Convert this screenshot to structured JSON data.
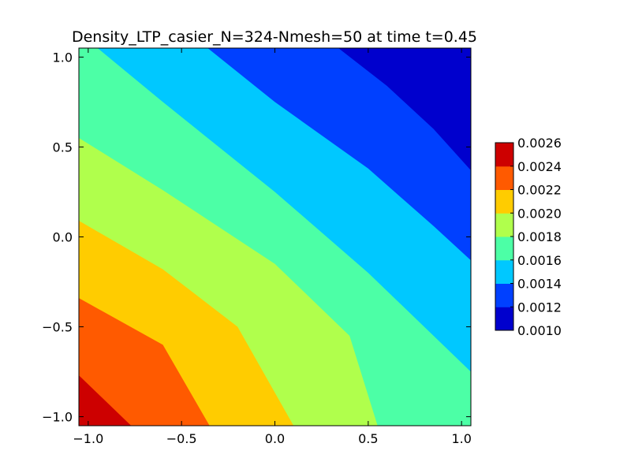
{
  "chart_data": {
    "type": "contourf",
    "title": "Density_LTP_casier_N=324-Nmesh=50 at time t=0.45",
    "xlabel": "",
    "ylabel": "",
    "xlim": [
      -1.05,
      1.05
    ],
    "ylim": [
      -1.05,
      1.05
    ],
    "x_ticks": [
      -1.0,
      -0.5,
      0.0,
      0.5,
      1.0
    ],
    "x_tick_labels": [
      "−1.0",
      "−0.5",
      "0.0",
      "0.5",
      "1.0"
    ],
    "y_ticks": [
      -1.0,
      -0.5,
      0.0,
      0.5,
      1.0
    ],
    "y_tick_labels": [
      "−1.0",
      "−0.5",
      "0.0",
      "0.5",
      "1.0"
    ],
    "grid": false,
    "colorbar": {
      "levels": [
        0.001,
        0.0012,
        0.0014,
        0.0016,
        0.0018,
        0.002,
        0.0022,
        0.0024,
        0.0026
      ],
      "labels": [
        "0.0010",
        "0.0012",
        "0.0014",
        "0.0016",
        "0.0018",
        "0.0020",
        "0.0022",
        "0.0024",
        "0.0026"
      ],
      "colors": [
        "#0000cd",
        "#0040ff",
        "#00c8ff",
        "#4cffa6",
        "#b0ff4c",
        "#ffcc00",
        "#ff5a00",
        "#cd0000"
      ],
      "position": "right"
    },
    "contour_boundaries": [
      {
        "level": 0.0012,
        "points": [
          [
            0.34,
            1.05
          ],
          [
            0.6,
            0.84
          ],
          [
            0.85,
            0.6
          ],
          [
            1.05,
            0.37
          ]
        ]
      },
      {
        "level": 0.0014,
        "points": [
          [
            -0.36,
            1.05
          ],
          [
            0.0,
            0.75
          ],
          [
            0.5,
            0.38
          ],
          [
            0.85,
            0.06
          ],
          [
            1.05,
            -0.13
          ]
        ]
      },
      {
        "level": 0.0016,
        "points": [
          [
            -0.95,
            1.05
          ],
          [
            -0.6,
            0.75
          ],
          [
            0.0,
            0.25
          ],
          [
            0.5,
            -0.2
          ],
          [
            0.85,
            -0.55
          ],
          [
            1.05,
            -0.75
          ]
        ]
      },
      {
        "level": 0.0018,
        "points": [
          [
            -1.05,
            0.55
          ],
          [
            -0.6,
            0.26
          ],
          [
            0.0,
            -0.15
          ],
          [
            0.4,
            -0.55
          ],
          [
            0.55,
            -1.05
          ]
        ]
      },
      {
        "level": 0.002,
        "points": [
          [
            -1.05,
            0.09
          ],
          [
            -0.6,
            -0.18
          ],
          [
            -0.2,
            -0.5
          ],
          [
            0.1,
            -1.05
          ]
        ]
      },
      {
        "level": 0.0022,
        "points": [
          [
            -1.05,
            -0.34
          ],
          [
            -0.6,
            -0.6
          ],
          [
            -0.35,
            -1.05
          ]
        ]
      },
      {
        "level": 0.0024,
        "points": [
          [
            -1.05,
            -0.77
          ],
          [
            -0.77,
            -1.05
          ]
        ]
      }
    ]
  }
}
